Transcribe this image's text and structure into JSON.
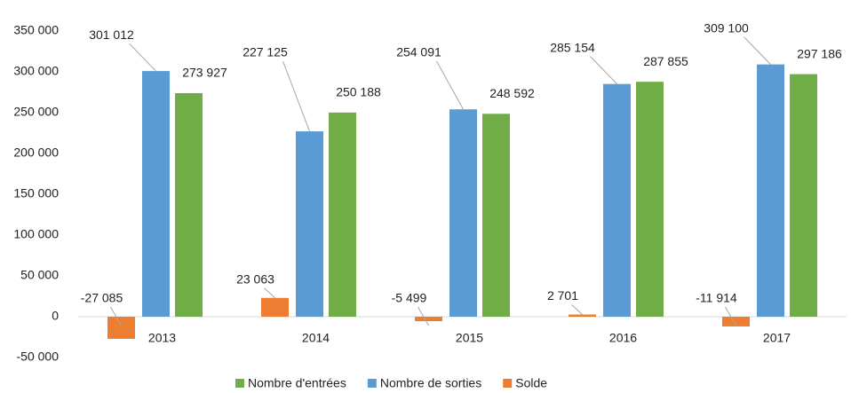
{
  "chart_data": {
    "type": "bar",
    "categories": [
      "2013",
      "2014",
      "2015",
      "2016",
      "2017"
    ],
    "series": [
      {
        "name": "Solde",
        "color": "#ed7d31",
        "values": [
          -27085,
          23063,
          -5499,
          2701,
          -11914
        ],
        "value_labels": [
          "-27 085",
          "23 063",
          "-5 499",
          "2 701",
          "-11 914"
        ]
      },
      {
        "name": "Nombre de sorties",
        "color": "#5b9bd5",
        "values": [
          301012,
          227125,
          254091,
          285154,
          309100
        ],
        "value_labels": [
          "301 012",
          "227 125",
          "254 091",
          "285 154",
          "309 100"
        ]
      },
      {
        "name": "Nombre d'entrées",
        "color": "#70ad47",
        "values": [
          273927,
          250188,
          248592,
          287855,
          297186
        ],
        "value_labels": [
          "273 927",
          "250 188",
          "248 592",
          "287 855",
          "297 186"
        ]
      }
    ],
    "legend_order": [
      "Nombre d'entrées",
      "Nombre de sorties",
      "Solde"
    ],
    "ylim": [
      -50000,
      350000
    ],
    "yticks": [
      {
        "value": -50000,
        "label": "-50 000"
      },
      0,
      {
        "value": 50000,
        "label": "50 000"
      },
      {
        "value": 100000,
        "label": "100 000"
      },
      {
        "value": 150000,
        "label": "150 000"
      },
      {
        "value": 200000,
        "label": "200 000"
      },
      {
        "value": 250000,
        "label": "250 000"
      },
      {
        "value": 300000,
        "label": "300 000"
      },
      {
        "value": 350000,
        "label": "350 000"
      }
    ],
    "grid": false,
    "legend": "bottom"
  }
}
